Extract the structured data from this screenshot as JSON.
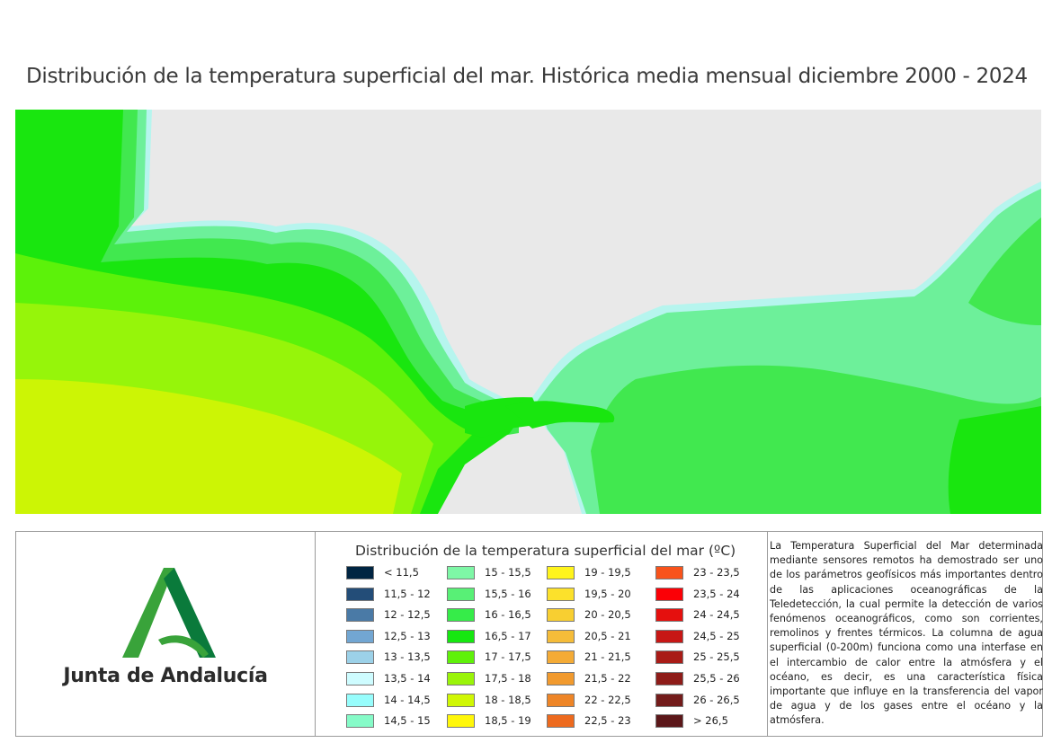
{
  "title": "Distribución de la temperatura superficial del mar. Histórica media mensual diciembre 2000 - 2024",
  "map": {
    "land_color": "#e9e9e9",
    "sea_colors": {
      "cold_coast": "#b6f5ee",
      "t_15_16": "#6df09a",
      "t_16_16_5": "#41e84f",
      "t_16_5_17": "#19e60f",
      "t_17_17_5": "#5cf20a",
      "t_17_5_18": "#96f50a",
      "t_18_18_5": "#ccf505"
    }
  },
  "logo": {
    "text": "Junta de Andalucía",
    "colors": {
      "light_green": "#39a33a",
      "dark_green": "#0a7a3b"
    }
  },
  "legend": {
    "title": "Distribución de la temperatura superficial del mar (ºC)",
    "columns": [
      [
        {
          "label": "< 11,5",
          "color": "#002542"
        },
        {
          "label": "11,5 - 12",
          "color": "#234d78"
        },
        {
          "label": "12 - 12,5",
          "color": "#4a7aa6"
        },
        {
          "label": "12,5 - 13",
          "color": "#72a6d2"
        },
        {
          "label": "13 - 13,5",
          "color": "#9cd1e8"
        },
        {
          "label": "13,5 - 14",
          "color": "#cefcff"
        },
        {
          "label": "14 - 14,5",
          "color": "#97fdfc"
        },
        {
          "label": "14,5 - 15",
          "color": "#86fbc8"
        }
      ],
      [
        {
          "label": "15 - 15,5",
          "color": "#7ef7a6"
        },
        {
          "label": "15,5 - 16",
          "color": "#58f076"
        },
        {
          "label": "16 - 16,5",
          "color": "#36ec49"
        },
        {
          "label": "16,5 - 17",
          "color": "#16e710"
        },
        {
          "label": "17 - 17,5",
          "color": "#5ff10a"
        },
        {
          "label": "17,5 - 18",
          "color": "#9af409"
        },
        {
          "label": "18 - 18,5",
          "color": "#d0f704"
        },
        {
          "label": "18,5 - 19",
          "color": "#fff70a"
        }
      ],
      [
        {
          "label": "19 - 19,5",
          "color": "#fff41c"
        },
        {
          "label": "19,5 - 20",
          "color": "#fce12b"
        },
        {
          "label": "20 - 20,5",
          "color": "#f8cf31"
        },
        {
          "label": "20,5 - 21",
          "color": "#f5bc39"
        },
        {
          "label": "21 - 21,5",
          "color": "#f4ab36"
        },
        {
          "label": "21,5 - 22",
          "color": "#f19a2e"
        },
        {
          "label": "22 - 22,5",
          "color": "#ee8527"
        },
        {
          "label": "22,5 - 23",
          "color": "#ed6a1e"
        }
      ],
      [
        {
          "label": "23 - 23,5",
          "color": "#f8531b"
        },
        {
          "label": "23,5 - 24",
          "color": "#fb0006"
        },
        {
          "label": "24 - 24,5",
          "color": "#e5100e"
        },
        {
          "label": "24,5 - 25",
          "color": "#c71715"
        },
        {
          "label": "25 - 25,5",
          "color": "#a91c17"
        },
        {
          "label": "25,5 - 26",
          "color": "#8e1c19"
        },
        {
          "label": "26 - 26,5",
          "color": "#731c1b"
        },
        {
          "label": "> 26,5",
          "color": "#5b1719"
        }
      ]
    ]
  },
  "description": "La Temperatura Superficial del Mar determinada mediante sensores remotos ha demostrado ser uno de los parámetros geofísicos más importantes dentro de las aplicaciones oceanográficas de la Teledetección, la cual permite la detección de varios fenómenos oceanográficos, como son corrientes, remolinos y frentes térmicos. La columna de agua superficial (0-200m) funciona como una interfase en el intercambio de calor entre la atmósfera y el océano, es decir, es una característica física importante que influye en la transferencia del vapor de agua y de los gases entre el océano y la atmósfera."
}
